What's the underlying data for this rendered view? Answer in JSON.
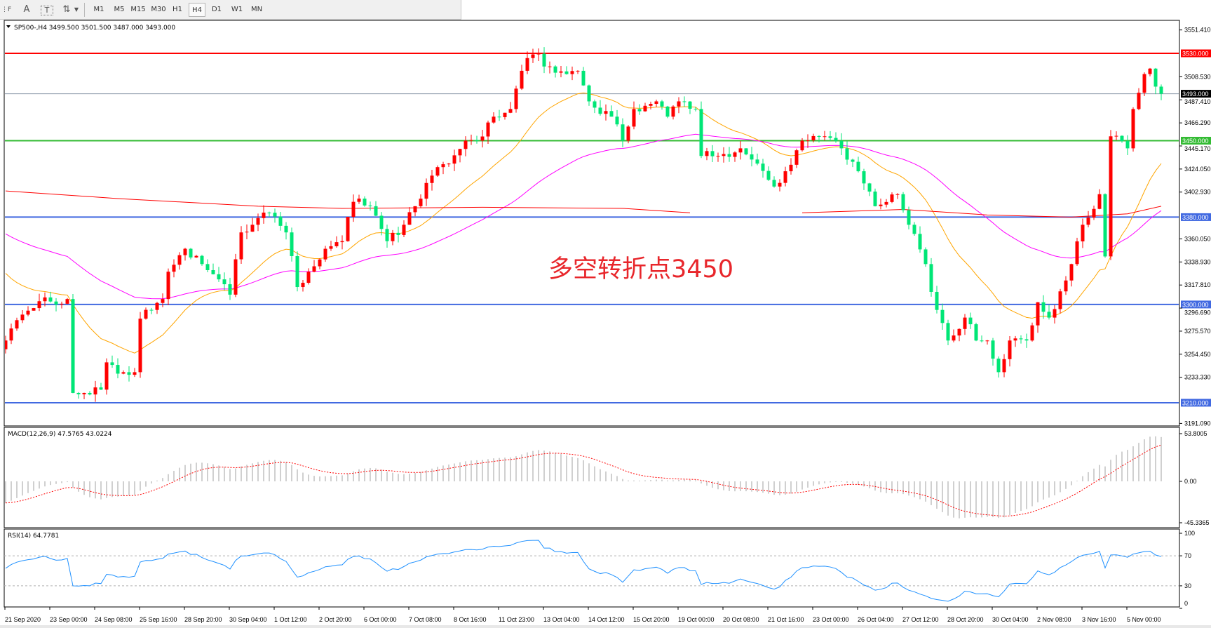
{
  "toolbar": {
    "icons": [
      "period-separator-icon",
      "text-icon",
      "text-label-icon",
      "arrows-icon"
    ],
    "periods": [
      "M1",
      "M5",
      "M15",
      "M30",
      "H1",
      "H4",
      "D1",
      "W1",
      "MN"
    ],
    "active_period": "H4"
  },
  "chart": {
    "title": "SP500-,H4  3499.500 3501.500 3487.000 3493.000",
    "symbol": "SP500-",
    "timeframe": "H4",
    "last_bar": {
      "open": 3499.5,
      "high": 3501.5,
      "low": 3487.0,
      "close": 3493.0
    },
    "price_range": [
      3191.09,
      3551.41
    ],
    "price_ticks": [
      "3551.410",
      "3508.530",
      "3487.410",
      "3466.290",
      "3445.170",
      "3424.050",
      "3402.930",
      "3360.050",
      "3338.930",
      "3317.810",
      "3296.690",
      "3275.570",
      "3254.450",
      "3233.330",
      "3191.090"
    ],
    "bullish_color": "#ff0000",
    "bearish_color": "#00e676",
    "levels": [
      {
        "price": 3530.0,
        "label": "3530.000",
        "color": "#ff0000"
      },
      {
        "price": 3493.0,
        "label": "3493.000",
        "color": "#000000",
        "line_color": "#8a98a8"
      },
      {
        "price": 3450.0,
        "label": "3450.000",
        "color": "#33bb33"
      },
      {
        "price": 3380.0,
        "label": "3380.000",
        "color": "#4169e1"
      },
      {
        "price": 3300.0,
        "label": "3300.000",
        "color": "#4169e1"
      },
      {
        "price": 3210.0,
        "label": "3210.000",
        "color": "#4169e1"
      }
    ],
    "annotation": "多空转折点3450",
    "close_keypoints": [
      [
        0,
        3267
      ],
      [
        1,
        3278
      ],
      [
        6,
        3303
      ],
      [
        9,
        3300
      ],
      [
        11,
        3305
      ],
      [
        12,
        3219
      ],
      [
        14,
        3219
      ],
      [
        17,
        3222
      ],
      [
        18,
        3247
      ],
      [
        21,
        3238
      ],
      [
        23,
        3238
      ],
      [
        24,
        3287
      ],
      [
        26,
        3295
      ],
      [
        28,
        3305
      ],
      [
        29,
        3330
      ],
      [
        32,
        3351
      ],
      [
        35,
        3337
      ],
      [
        38,
        3323
      ],
      [
        40,
        3309
      ],
      [
        42,
        3366
      ],
      [
        44,
        3373
      ],
      [
        47,
        3384
      ],
      [
        50,
        3366
      ],
      [
        52,
        3316
      ],
      [
        54,
        3330
      ],
      [
        57,
        3351
      ],
      [
        60,
        3358
      ],
      [
        62,
        3394
      ],
      [
        65,
        3390
      ],
      [
        68,
        3358
      ],
      [
        71,
        3373
      ],
      [
        73,
        3390
      ],
      [
        76,
        3418
      ],
      [
        79,
        3429
      ],
      [
        82,
        3450
      ],
      [
        84,
        3450
      ],
      [
        87,
        3472
      ],
      [
        90,
        3479
      ],
      [
        92,
        3514
      ],
      [
        94,
        3529
      ],
      [
        97,
        3518
      ],
      [
        100,
        3511
      ],
      [
        102,
        3514
      ],
      [
        104,
        3486
      ],
      [
        108,
        3472
      ],
      [
        110,
        3450
      ],
      [
        112,
        3479
      ],
      [
        116,
        3486
      ],
      [
        118,
        3472
      ],
      [
        120,
        3486
      ],
      [
        123,
        3479
      ],
      [
        124,
        3436
      ],
      [
        127,
        3436
      ],
      [
        131,
        3443
      ],
      [
        134,
        3429
      ],
      [
        137,
        3408
      ],
      [
        139,
        3422
      ],
      [
        142,
        3450
      ],
      [
        146,
        3454
      ],
      [
        149,
        3443
      ],
      [
        152,
        3422
      ],
      [
        155,
        3390
      ],
      [
        159,
        3401
      ],
      [
        161,
        3373
      ],
      [
        164,
        3337
      ],
      [
        166,
        3295
      ],
      [
        168,
        3267
      ],
      [
        171,
        3288
      ],
      [
        173,
        3267
      ],
      [
        175,
        3267
      ],
      [
        177,
        3238
      ],
      [
        179,
        3267
      ],
      [
        182,
        3267
      ],
      [
        184,
        3302
      ],
      [
        186,
        3288
      ],
      [
        188,
        3312
      ],
      [
        190,
        3337
      ],
      [
        192,
        3373
      ],
      [
        195,
        3401
      ],
      [
        196,
        3344
      ],
      [
        197,
        3454
      ],
      [
        200,
        3443
      ],
      [
        201,
        3479
      ],
      [
        203,
        3511
      ],
      [
        204,
        3516
      ],
      [
        205,
        3499.5
      ],
      [
        206,
        3493
      ]
    ],
    "ma_fast_color": "#ffa500",
    "ma_mid_color": "#ff00ff",
    "ma_slow_color": "#ff0000",
    "ma_slow_keypoints": [
      [
        0,
        3404
      ],
      [
        20,
        3397
      ],
      [
        45,
        3390
      ],
      [
        60,
        3388
      ],
      [
        85,
        3389
      ],
      [
        110,
        3388
      ],
      [
        122,
        3384
      ],
      [
        null,
        null
      ],
      [
        142,
        3384
      ],
      [
        160,
        3387
      ],
      [
        175,
        3382
      ],
      [
        190,
        3380
      ],
      [
        200,
        3383
      ],
      [
        206,
        3390
      ]
    ]
  },
  "macd": {
    "label": "MACD(12,26,9) 47.5765 43.0224",
    "ticks": [
      "53.8005",
      "0.00",
      "-45.3365"
    ],
    "range": [
      -45.3365,
      53.8005
    ],
    "histogram_color": "#c0c0c0",
    "signal_color": "#ff0000"
  },
  "rsi": {
    "label": "RSI(14) 64.7781",
    "ticks": [
      "100",
      "70",
      "30",
      "0"
    ],
    "levels": [
      70,
      30
    ],
    "color": "#1e90ff"
  },
  "time_axis": [
    "21 Sep 2020",
    "23 Sep 00:00",
    "24 Sep 08:00",
    "25 Sep 16:00",
    "28 Sep 20:00",
    "30 Sep 04:00",
    "1 Oct 12:00",
    "2 Oct 20:00",
    "6 Oct 00:00",
    "7 Oct 08:00",
    "8 Oct 16:00",
    "11 Oct 23:00",
    "13 Oct 04:00",
    "14 Oct 12:00",
    "15 Oct 20:00",
    "19 Oct 00:00",
    "20 Oct 08:00",
    "21 Oct 16:00",
    "23 Oct 00:00",
    "26 Oct 04:00",
    "27 Oct 12:00",
    "28 Oct 20:00",
    "30 Oct 04:00",
    "2 Nov 08:00",
    "3 Nov 16:00",
    "5 Nov 00:00"
  ]
}
